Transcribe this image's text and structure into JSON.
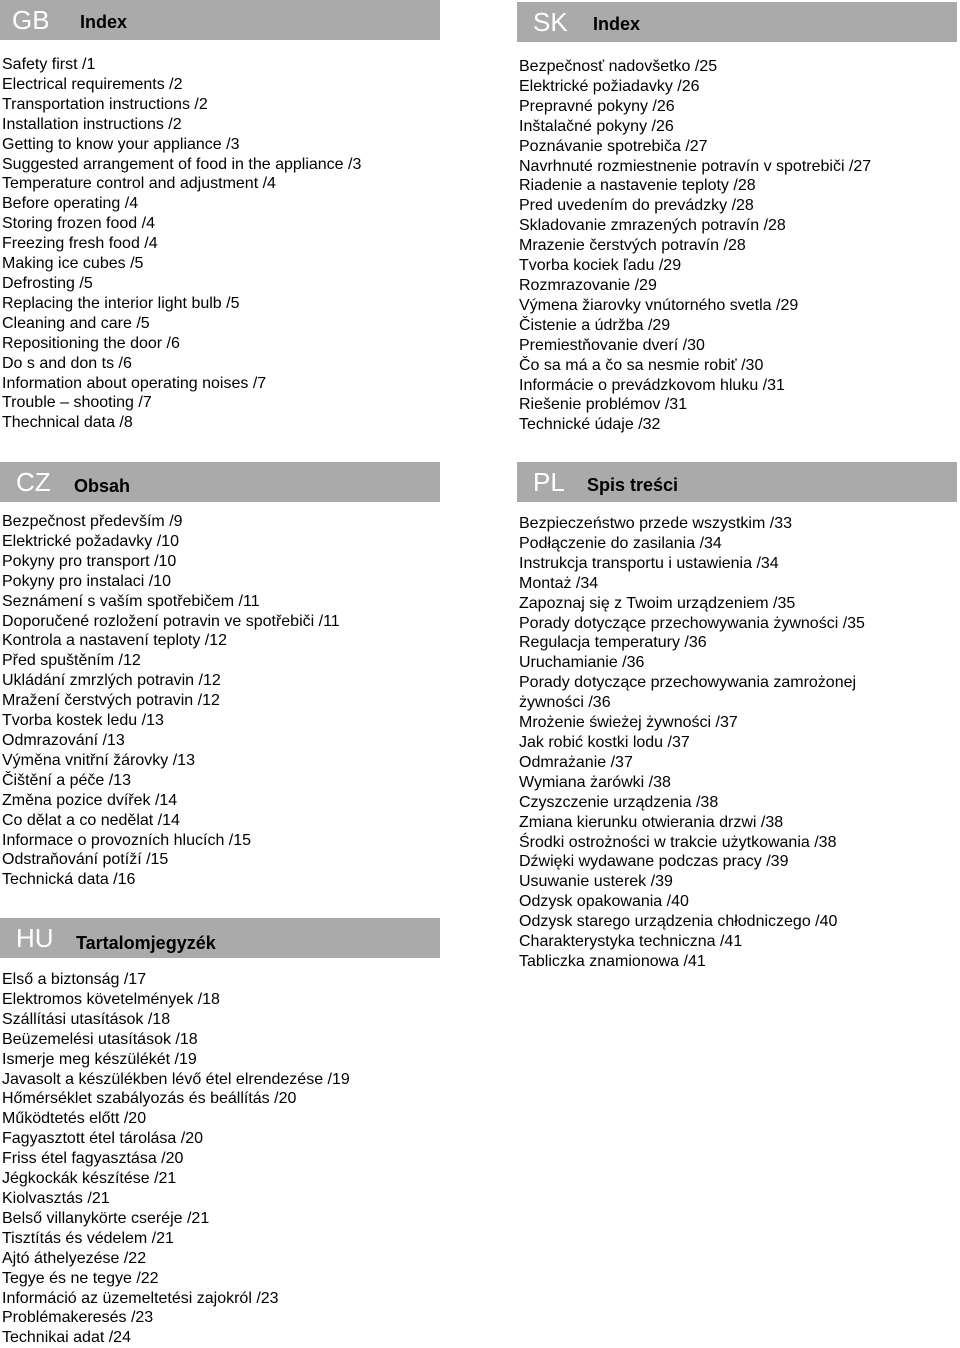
{
  "sections": [
    {
      "id": "gb",
      "code": "GB",
      "title": "Index",
      "items": [
        "Safety first /1",
        "Electrical requirements /2",
        "Transportation instructions /2",
        "Installation instructions /2",
        "Getting to know your appliance /3",
        "Suggested arrangement of food in the appliance /3",
        "Temperature control and adjustment /4",
        "Before operating /4",
        "Storing frozen food /4",
        "Freezing fresh food /4",
        "Making ice cubes /5",
        "Defrosting /5",
        "Replacing the interior light bulb /5",
        "Cleaning and care /5",
        "Repositioning the door /6",
        "Do s and don ts /6",
        "Information about operating noises /7",
        "Trouble – shooting /7",
        "Thechnical data /8"
      ]
    },
    {
      "id": "sk",
      "code": "SK",
      "title": "Index",
      "items": [
        "Bezpečnosť nadovšetko /25",
        "Elektrické požiadavky /26",
        "Prepravné pokyny /26",
        "Inštalačné pokyny /26",
        "Poznávanie spotrebiča /27",
        "Navrhnuté rozmiestnenie potravín v spotrebiči /27",
        "Riadenie a nastavenie teploty /28",
        "Pred uvedením do prevádzky /28",
        "Skladovanie zmrazených potravín /28",
        "Mrazenie čerstvých potravín /28",
        "Tvorba kociek ľadu /29",
        "Rozmrazovanie /29",
        "Výmena žiarovky vnútorného svetla /29",
        "Čistenie a údržba /29",
        "Premiestňovanie dverí /30",
        "Čo sa má a čo sa nesmie robiť /30",
        "Informácie o prevádzkovom hluku /31",
        "Riešenie problémov /31",
        "Technické údaje /32"
      ]
    },
    {
      "id": "cz",
      "code": "CZ",
      "title": "Obsah",
      "items": [
        "Bezpečnost především /9",
        "Elektrické požadavky /10",
        "Pokyny pro transport /10",
        "Pokyny pro instalaci /10",
        "Seznámení s vaším spotřebičem /11",
        "Doporučené rozložení potravin ve spotřebiči /11",
        "Kontrola a nastavení teploty /12",
        "Před spuštěním /12",
        "Ukládání zmrzlých potravin /12",
        "Mražení čerstvých potravin /12",
        "Tvorba kostek ledu /13",
        "Odmrazování /13",
        "Výměna vnitřní žárovky /13",
        "Čištění a péče /13",
        "Změna pozice dvířek /14",
        "Co dělat a co nedělat /14",
        "Informace o provozních hlucích /15",
        "Odstraňování potíží /15",
        "Technická data /16"
      ]
    },
    {
      "id": "pl",
      "code": "PL",
      "title": "Spis treści",
      "items": [
        "Bezpieczeństwo przede wszystkim /33",
        "Podłączenie do zasilania /34",
        "Instrukcja transportu i ustawienia /34",
        "Montaż /34",
        "Zapoznaj się z Twoim urządzeniem /35",
        "Porady dotyczące przechowywania żywności /35",
        "Regulacja temperatury /36",
        "Uruchamianie /36",
        "Porady dotyczące przechowywania zamrożonej",
        "żywności /36",
        "Mrożenie świeżej żywności /37",
        "Jak robić kostki lodu /37",
        "Odmrażanie /37",
        "Wymiana żarówki /38",
        "Czyszczenie urządzenia /38",
        "Zmiana kierunku otwierania drzwi /38",
        "Środki ostrożności w trakcie użytkowania /38",
        "Dźwięki wydawane podczas pracy /39",
        "Usuwanie usterek /39",
        "Odzysk opakowania /40",
        "Odzysk starego urządzenia chłodniczego /40",
        "Charakterystyka techniczna /41",
        "Tabliczka znamionowa /41"
      ]
    },
    {
      "id": "hu",
      "code": "HU",
      "title": "Tartalomjegyzék",
      "items": [
        "Első a biztonság /17",
        "Elektromos követelmények /18",
        "Szállítási utasítások /18",
        "Beüzemelési utasítások /18",
        "Ismerje meg készülékét /19",
        "Javasolt a készülékben lévő étel elrendezése /19",
        "Hőmérséklet szabályozás és beállítás /20",
        "Működtetés előtt /20",
        "Fagyasztott étel tárolása /20",
        "Friss étel fagyasztása /20",
        "Jégkockák készítése /21",
        "Kiolvasztás /21",
        "Belső villanykörte cseréje /21",
        "Tisztítás és védelem /21",
        "Ajtó áthelyezése /22",
        "Tegye és ne tegye /22",
        "Információ az üzemeltetési zajokról /23",
        "Problémakeresés /23",
        "Technikai adat /24"
      ]
    }
  ]
}
